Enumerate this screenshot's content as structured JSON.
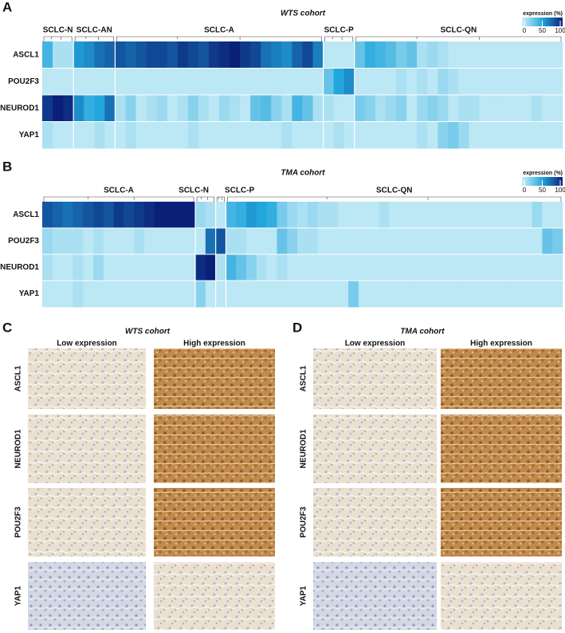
{
  "heatmaps": [
    {
      "letter": "A",
      "title": "WTS cohort",
      "legend": {
        "title": "expression (%)",
        "ticks": [
          0,
          50,
          100
        ]
      },
      "genes": [
        "ASCL1",
        "POU2F3",
        "NEUROD1",
        "YAP1"
      ],
      "groups": [
        {
          "name": "SCLC-N",
          "values": [
            [
              40,
              10,
              10
            ],
            [
              5,
              5,
              5
            ],
            [
              90,
              100,
              95
            ],
            [
              10,
              5,
              5
            ]
          ]
        },
        {
          "name": "SCLC-AN",
          "values": [
            [
              55,
              60,
              70,
              75
            ],
            [
              5,
              5,
              5,
              5
            ],
            [
              60,
              45,
              50,
              70
            ],
            [
              5,
              5,
              10,
              5
            ]
          ]
        },
        {
          "name": "SCLC-A",
          "values": [
            [
              80,
              75,
              80,
              85,
              85,
              80,
              90,
              85,
              80,
              90,
              95,
              100,
              90,
              85,
              70,
              65,
              60,
              75,
              85,
              65
            ],
            [
              5,
              5,
              5,
              5,
              5,
              5,
              5,
              5,
              5,
              5,
              5,
              5,
              5,
              5,
              5,
              5,
              5,
              5,
              5,
              5
            ],
            [
              10,
              20,
              5,
              10,
              15,
              5,
              10,
              20,
              10,
              5,
              15,
              10,
              5,
              30,
              35,
              20,
              10,
              40,
              30,
              10
            ],
            [
              5,
              10,
              5,
              5,
              5,
              5,
              5,
              10,
              5,
              5,
              5,
              5,
              5,
              5,
              5,
              5,
              10,
              5,
              5,
              5
            ]
          ]
        },
        {
          "name": "SCLC-P",
          "values": [
            [
              5,
              5,
              5
            ],
            [
              30,
              50,
              60
            ],
            [
              10,
              5,
              5
            ],
            [
              5,
              10,
              5
            ]
          ]
        },
        {
          "name": "SCLC-QN",
          "values": [
            [
              30,
              45,
              40,
              35,
              25,
              30,
              10,
              15,
              10,
              5,
              5,
              5,
              5,
              5,
              5,
              5,
              5,
              5,
              5,
              5
            ],
            [
              5,
              5,
              5,
              5,
              10,
              5,
              10,
              5,
              15,
              10,
              5,
              5,
              5,
              5,
              5,
              5,
              5,
              5,
              5,
              5
            ],
            [
              25,
              20,
              10,
              15,
              20,
              5,
              15,
              20,
              15,
              5,
              10,
              10,
              5,
              5,
              5,
              5,
              5,
              10,
              5,
              5
            ],
            [
              5,
              5,
              5,
              5,
              5,
              5,
              10,
              5,
              20,
              25,
              15,
              5,
              5,
              5,
              5,
              5,
              5,
              5,
              5,
              5
            ]
          ]
        }
      ]
    },
    {
      "letter": "B",
      "title": "TMA cohort",
      "legend": {
        "title": "expression (%)",
        "ticks": [
          0,
          50,
          100
        ]
      },
      "genes": [
        "ASCL1",
        "POU2F3",
        "NEUROD1",
        "YAP1"
      ],
      "groups": [
        {
          "name": "SCLC-A",
          "values": [
            [
              80,
              75,
              70,
              75,
              80,
              85,
              80,
              90,
              85,
              90,
              95,
              100,
              100,
              100,
              100
            ],
            [
              15,
              10,
              10,
              10,
              5,
              10,
              5,
              5,
              5,
              10,
              5,
              5,
              5,
              5,
              5
            ],
            [
              10,
              5,
              5,
              10,
              5,
              15,
              5,
              5,
              5,
              5,
              5,
              5,
              5,
              5,
              5
            ],
            [
              5,
              5,
              5,
              10,
              5,
              5,
              5,
              5,
              5,
              5,
              5,
              5,
              5,
              5,
              5
            ]
          ]
        },
        {
          "name": "SCLC-N",
          "values": [
            [
              15,
              10
            ],
            [
              5,
              70
            ],
            [
              95,
              100
            ],
            [
              20,
              5
            ]
          ]
        },
        {
          "name": "SCLC-P",
          "values": [
            [
              5
            ],
            [
              80
            ],
            [
              10
            ],
            [
              5
            ]
          ]
        },
        {
          "name": "SCLC-QN",
          "values": [
            [
              40,
              45,
              55,
              50,
              45,
              25,
              15,
              10,
              15,
              10,
              10,
              5,
              5,
              5,
              5,
              10,
              5,
              5,
              5,
              5,
              5,
              5,
              5,
              5,
              5,
              5,
              5,
              5,
              5,
              5,
              15,
              5,
              5
            ],
            [
              10,
              10,
              5,
              5,
              5,
              30,
              20,
              10,
              10,
              5,
              5,
              5,
              5,
              5,
              5,
              5,
              5,
              5,
              5,
              5,
              5,
              5,
              5,
              5,
              5,
              5,
              5,
              5,
              5,
              5,
              5,
              30,
              25
            ],
            [
              40,
              30,
              20,
              10,
              5,
              10,
              5,
              5,
              5,
              5,
              5,
              5,
              5,
              5,
              5,
              5,
              5,
              5,
              5,
              5,
              5,
              5,
              5,
              5,
              5,
              5,
              5,
              5,
              5,
              5,
              5,
              5,
              5
            ],
            [
              5,
              5,
              5,
              5,
              5,
              5,
              5,
              5,
              5,
              5,
              5,
              5,
              25,
              5,
              5,
              5,
              5,
              5,
              5,
              5,
              5,
              5,
              5,
              5,
              5,
              5,
              5,
              5,
              5,
              5,
              5,
              5,
              5
            ]
          ]
        }
      ]
    }
  ],
  "stains": [
    {
      "letter": "C",
      "title": "WTS cohort",
      "columns": [
        "Low expression",
        "High expression"
      ],
      "rows": [
        "ASCL1",
        "NEUROD1",
        "POU2F3",
        "YAP1"
      ]
    },
    {
      "letter": "D",
      "title": "TMA cohort",
      "columns": [
        "Low expression",
        "High expression"
      ],
      "rows": [
        "ASCL1",
        "NEUROD1",
        "POU2F3",
        "YAP1"
      ]
    }
  ]
}
